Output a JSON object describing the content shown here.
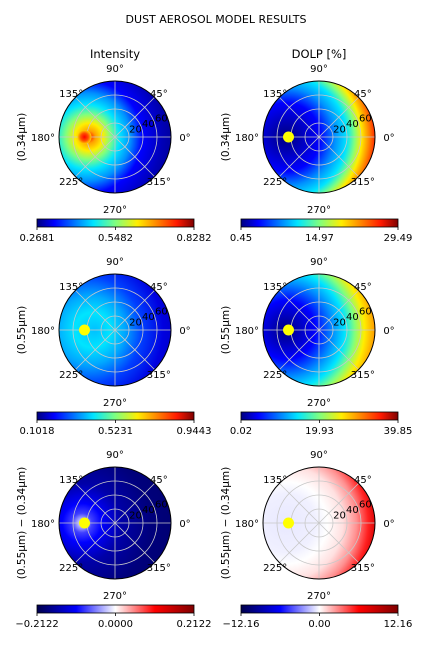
{
  "figure": {
    "title": "DUST AEROSOL MODEL RESULTS"
  },
  "column_titles": [
    "Intensity",
    "DOLP [%]"
  ],
  "row_labels": [
    "(0.34μm)",
    "(0.55μm)",
    "(0.55μm) − (0.34μm)"
  ],
  "angle_labels": [
    "0°",
    "45°",
    "90°",
    "135°",
    "180°",
    "225°",
    "270°",
    "315°"
  ],
  "radial_ticks": [
    "20",
    "40",
    "60"
  ],
  "chart_data": [
    {
      "type": "heatmap",
      "projection": "polar",
      "row": 0,
      "col": 0,
      "title": "Intensity",
      "ylabel": "(0.34μm)",
      "colormap": "jet",
      "colorbar_ticks": [
        "0.2681",
        "0.5482",
        "0.8282"
      ],
      "range": [
        0.2681,
        0.8282
      ],
      "sun_marker": {
        "azimuth_deg": 180,
        "zenith": 45
      }
    },
    {
      "type": "heatmap",
      "projection": "polar",
      "row": 0,
      "col": 1,
      "title": "DOLP [%]",
      "ylabel": "(0.34μm)",
      "colormap": "jet",
      "colorbar_ticks": [
        "0.45",
        "14.97",
        "29.49"
      ],
      "range": [
        0.45,
        29.49
      ],
      "sun_marker": {
        "azimuth_deg": 180,
        "zenith": 45
      }
    },
    {
      "type": "heatmap",
      "projection": "polar",
      "row": 1,
      "col": 0,
      "ylabel": "(0.55μm)",
      "colormap": "jet",
      "colorbar_ticks": [
        "0.1018",
        "0.5231",
        "0.9443"
      ],
      "range": [
        0.1018,
        0.9443
      ],
      "sun_marker": {
        "azimuth_deg": 180,
        "zenith": 45
      }
    },
    {
      "type": "heatmap",
      "projection": "polar",
      "row": 1,
      "col": 1,
      "ylabel": "(0.55μm)",
      "colormap": "jet",
      "colorbar_ticks": [
        "0.02",
        "19.93",
        "39.85"
      ],
      "range": [
        0.02,
        39.85
      ],
      "sun_marker": {
        "azimuth_deg": 180,
        "zenith": 45
      }
    },
    {
      "type": "heatmap",
      "projection": "polar",
      "row": 2,
      "col": 0,
      "ylabel": "(0.55μm) − (0.34μm)",
      "colormap": "seismic",
      "colorbar_ticks": [
        "−0.2122",
        "0.0000",
        "0.2122"
      ],
      "range": [
        -0.2122,
        0.2122
      ],
      "sun_marker": {
        "azimuth_deg": 180,
        "zenith": 45
      }
    },
    {
      "type": "heatmap",
      "projection": "polar",
      "row": 2,
      "col": 1,
      "ylabel": "(0.55μm) − (0.34μm)",
      "colormap": "seismic",
      "colorbar_ticks": [
        "−12.16",
        "0.00",
        "12.16"
      ],
      "range": [
        -12.16,
        12.16
      ],
      "sun_marker": {
        "azimuth_deg": 180,
        "zenith": 45
      }
    }
  ]
}
